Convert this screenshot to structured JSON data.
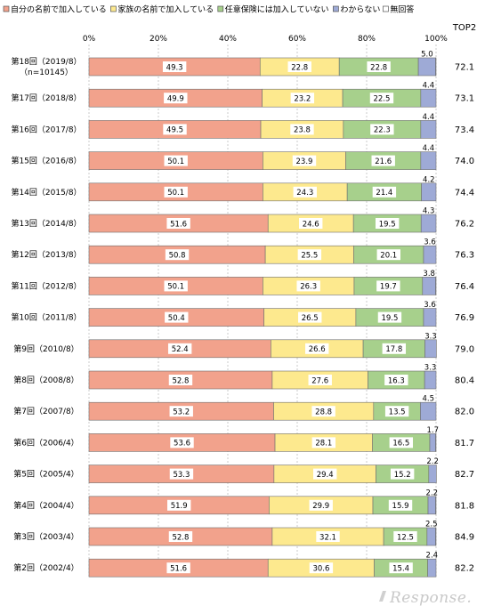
{
  "chart_data": {
    "type": "bar",
    "stacked": true,
    "orientation": "horizontal",
    "top2_header": "TOP2",
    "x_ticks": [
      "0%",
      "20%",
      "40%",
      "60%",
      "80%",
      "100%"
    ],
    "xlim": [
      0,
      100
    ],
    "grid": true,
    "legend_position": "top",
    "categories": [
      "第18回（2019/8）\n（n=10145）",
      "第17回（2018/8）",
      "第16回（2017/8）",
      "第15回（2016/8）",
      "第14回（2015/8）",
      "第13回（2014/8）",
      "第12回（2013/8）",
      "第11回（2012/8）",
      "第10回（2011/8）",
      "第9回（2010/8）",
      "第8回（2008/8）",
      "第7回（2007/8）",
      "第6回（2006/4）",
      "第5回（2005/4）",
      "第4回（2004/4）",
      "第3回（2003/4）",
      "第2回（2002/4）"
    ],
    "series": [
      {
        "name": "自分の名前で加入している",
        "color": "#f2a28c",
        "values": [
          49.3,
          49.9,
          49.5,
          50.1,
          50.1,
          51.6,
          50.8,
          50.1,
          50.4,
          52.4,
          52.8,
          53.2,
          53.6,
          53.3,
          51.9,
          52.8,
          51.6
        ]
      },
      {
        "name": "家族の名前で加入している",
        "color": "#fde98e",
        "values": [
          22.8,
          23.2,
          23.8,
          23.9,
          24.3,
          24.6,
          25.5,
          26.3,
          26.5,
          26.6,
          27.6,
          28.8,
          28.1,
          29.4,
          29.9,
          32.1,
          30.6
        ]
      },
      {
        "name": "任意保険には加入していない",
        "color": "#a7d08c",
        "values": [
          22.8,
          22.5,
          22.3,
          21.6,
          21.4,
          19.5,
          20.1,
          19.7,
          19.5,
          17.8,
          16.3,
          13.5,
          16.5,
          15.2,
          15.9,
          12.5,
          15.4
        ]
      },
      {
        "name": "わからない",
        "color": "#9eaad6",
        "values": [
          5.0,
          4.4,
          4.4,
          4.4,
          4.2,
          4.3,
          3.6,
          3.8,
          3.6,
          3.3,
          3.3,
          4.5,
          1.7,
          2.2,
          2.2,
          2.5,
          2.4
        ]
      },
      {
        "name": "無回答",
        "color": "#ffffff",
        "values": [
          0,
          0,
          0,
          0,
          0,
          0,
          0,
          0,
          0,
          0,
          0,
          0,
          0,
          0,
          0,
          0,
          0
        ]
      }
    ],
    "top2": [
      "72.1",
      "73.1",
      "73.4",
      "74.0",
      "74.4",
      "76.2",
      "76.3",
      "76.4",
      "76.9",
      "79.0",
      "80.4",
      "82.0",
      "81.7",
      "82.7",
      "81.8",
      "84.9",
      "82.2"
    ]
  },
  "logo": {
    "text": "Response."
  }
}
